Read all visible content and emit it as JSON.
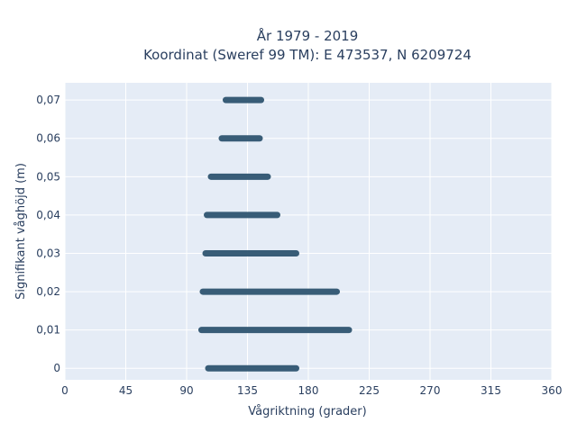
{
  "chart_data": {
    "type": "scatter",
    "title_lines": [
      "År 1979 - 2019",
      "Koordinat (Sweref 99 TM): E 473537, N 6209724"
    ],
    "xlabel": "Vågriktning (grader)",
    "ylabel": "Signifikant våghöjd (m)",
    "xlim": [
      0,
      360
    ],
    "ylim": [
      -0.003,
      0.0745
    ],
    "x_ticks": [
      0,
      45,
      90,
      135,
      180,
      225,
      270,
      315,
      360
    ],
    "y_ticks": [
      {
        "value": 0,
        "label": "0"
      },
      {
        "value": 0.01,
        "label": "0,01"
      },
      {
        "value": 0.02,
        "label": "0,02"
      },
      {
        "value": 0.03,
        "label": "0,03"
      },
      {
        "value": 0.04,
        "label": "0,04"
      },
      {
        "value": 0.05,
        "label": "0,05"
      },
      {
        "value": 0.06,
        "label": "0,06"
      },
      {
        "value": 0.07,
        "label": "0,07"
      }
    ],
    "grid": true,
    "marker_color": "#2e5470",
    "series": [
      {
        "values": [
          {
            "y": 0,
            "x_min": 106,
            "x_max": 171
          },
          {
            "y": 0.01,
            "x_min": 101,
            "x_max": 210
          },
          {
            "y": 0.02,
            "x_min": 102,
            "x_max": 201
          },
          {
            "y": 0.03,
            "x_min": 104,
            "x_max": 171
          },
          {
            "y": 0.04,
            "x_min": 105,
            "x_max": 157
          },
          {
            "y": 0.05,
            "x_min": 108,
            "x_max": 150
          },
          {
            "y": 0.06,
            "x_min": 116,
            "x_max": 144
          },
          {
            "y": 0.07,
            "x_min": 119,
            "x_max": 145
          }
        ]
      }
    ]
  }
}
